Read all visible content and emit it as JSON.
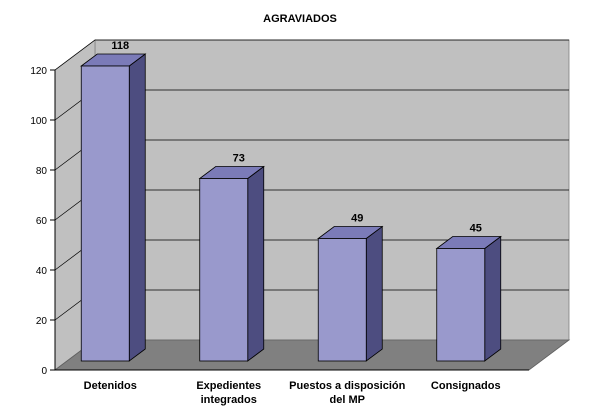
{
  "chart_data": {
    "type": "bar",
    "title": "AGRAVIADOS",
    "categories": [
      [
        "Detenidos"
      ],
      [
        "Expedientes",
        "integrados"
      ],
      [
        "Puestos a disposición",
        "del MP"
      ],
      [
        "Consignados"
      ]
    ],
    "values": [
      118,
      73,
      49,
      45
    ],
    "data_labels": [
      "118",
      "73",
      "49",
      "45"
    ],
    "ylim": [
      0,
      120
    ],
    "yticks": [
      0,
      20,
      40,
      60,
      80,
      100,
      120
    ],
    "ytick_labels": [
      "0",
      "20",
      "40",
      "60",
      "80",
      "100",
      "120"
    ],
    "xlabel": "",
    "ylabel": "",
    "grid": true,
    "legend": "none",
    "three_d": true,
    "colors": {
      "bar_front": "#9999cc",
      "bar_side": "#4d4d80",
      "bar_top": "#7b7bb8",
      "wall": "#c0c0c0",
      "floor": "#808080",
      "gridline": "#000000"
    }
  }
}
